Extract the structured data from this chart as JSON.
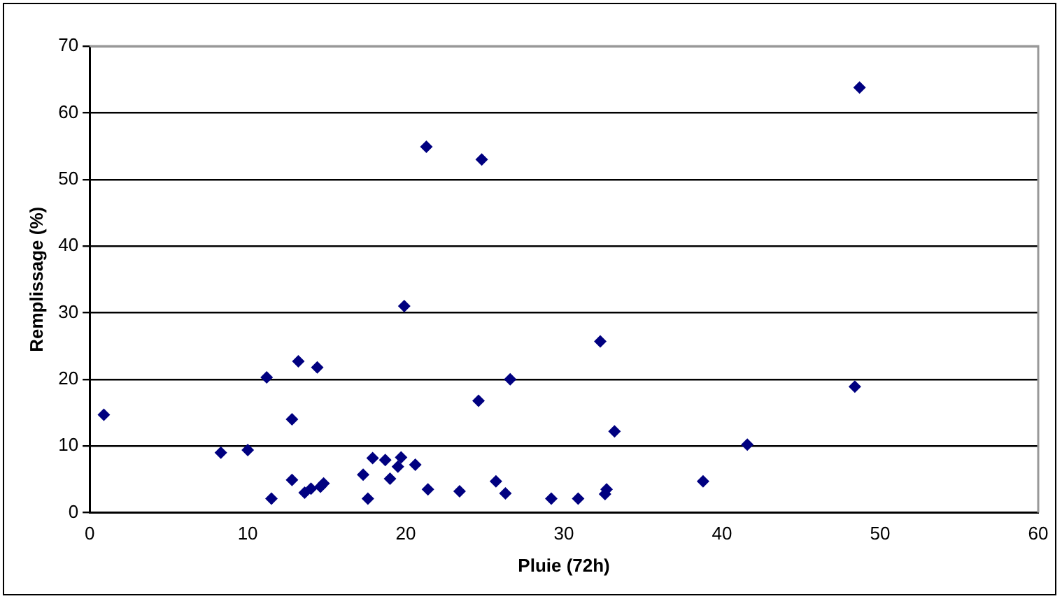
{
  "chart_data": {
    "type": "scatter",
    "xlabel": "Pluie (72h)",
    "ylabel": "Remplissage (%)",
    "x": [
      0.9,
      8.3,
      10.0,
      11.5,
      11.2,
      12.8,
      12.8,
      13.2,
      13.6,
      14.0,
      14.6,
      14.8,
      14.4,
      17.3,
      17.6,
      17.9,
      18.7,
      19.0,
      19.5,
      19.7,
      20.6,
      21.4,
      19.9,
      21.3,
      24.8,
      24.6,
      26.6,
      32.3,
      33.2,
      23.4,
      25.7,
      26.3,
      29.2,
      30.9,
      32.6,
      32.7,
      38.8,
      41.6,
      48.4,
      48.7
    ],
    "series": [
      {
        "color": "#000080",
        "values": [
          14.7,
          9.0,
          9.4,
          2.1,
          20.3,
          14.0,
          4.9,
          22.7,
          3.0,
          3.6,
          3.9,
          4.4,
          21.8,
          5.7,
          2.1,
          8.2,
          7.9,
          5.1,
          6.9,
          8.3,
          7.2,
          3.5,
          31.0,
          54.9,
          53.0,
          16.8,
          20.0,
          25.7,
          12.2,
          3.2,
          4.7,
          2.9,
          2.1,
          2.1,
          2.8,
          3.5,
          4.7,
          10.2,
          18.9,
          63.8
        ]
      }
    ],
    "xlim": [
      0,
      60
    ],
    "xticks": [
      0,
      10,
      20,
      30,
      40,
      50,
      60
    ],
    "ylim": [
      0,
      70
    ],
    "yticks": [
      0,
      10,
      20,
      30,
      40,
      50,
      60,
      70
    ],
    "grid": "y",
    "legend": false,
    "marker": "diamond"
  }
}
